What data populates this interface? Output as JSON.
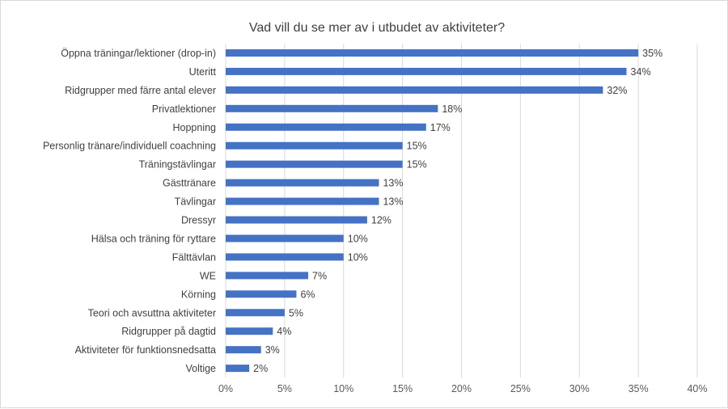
{
  "chart_data": {
    "type": "bar",
    "orientation": "horizontal",
    "title": "Vad vill du se mer av i utbudet av aktiviteter?",
    "categories": [
      "Öppna träningar/lektioner (drop-in)",
      "Uteritt",
      "Ridgrupper med färre antal elever",
      "Privatlektioner",
      "Hoppning",
      "Personlig tränare/individuell coachning",
      "Träningstävlingar",
      "Gästtränare",
      "Tävlingar",
      "Dressyr",
      "Hälsa och träning för ryttare",
      "Fälttävlan",
      "WE",
      "Körning",
      "Teori och avsuttna aktiviteter",
      "Ridgrupper på dagtid",
      "Aktiviteter för funktionsnedsatta",
      "Voltige"
    ],
    "values": [
      35,
      34,
      32,
      18,
      17,
      15,
      15,
      13,
      13,
      12,
      10,
      10,
      7,
      6,
      5,
      4,
      3,
      2
    ],
    "value_labels": [
      "35%",
      "34%",
      "32%",
      "18%",
      "17%",
      "15%",
      "15%",
      "13%",
      "13%",
      "12%",
      "10%",
      "10%",
      "7%",
      "6%",
      "5%",
      "4%",
      "3%",
      "2%"
    ],
    "x_ticks": [
      "0%",
      "5%",
      "10%",
      "15%",
      "20%",
      "25%",
      "30%",
      "35%",
      "40%"
    ],
    "xlim": [
      0,
      40
    ],
    "xlabel": "",
    "ylabel": "",
    "grid": "vertical",
    "legend": "none",
    "bar_color": "#4472c4"
  }
}
